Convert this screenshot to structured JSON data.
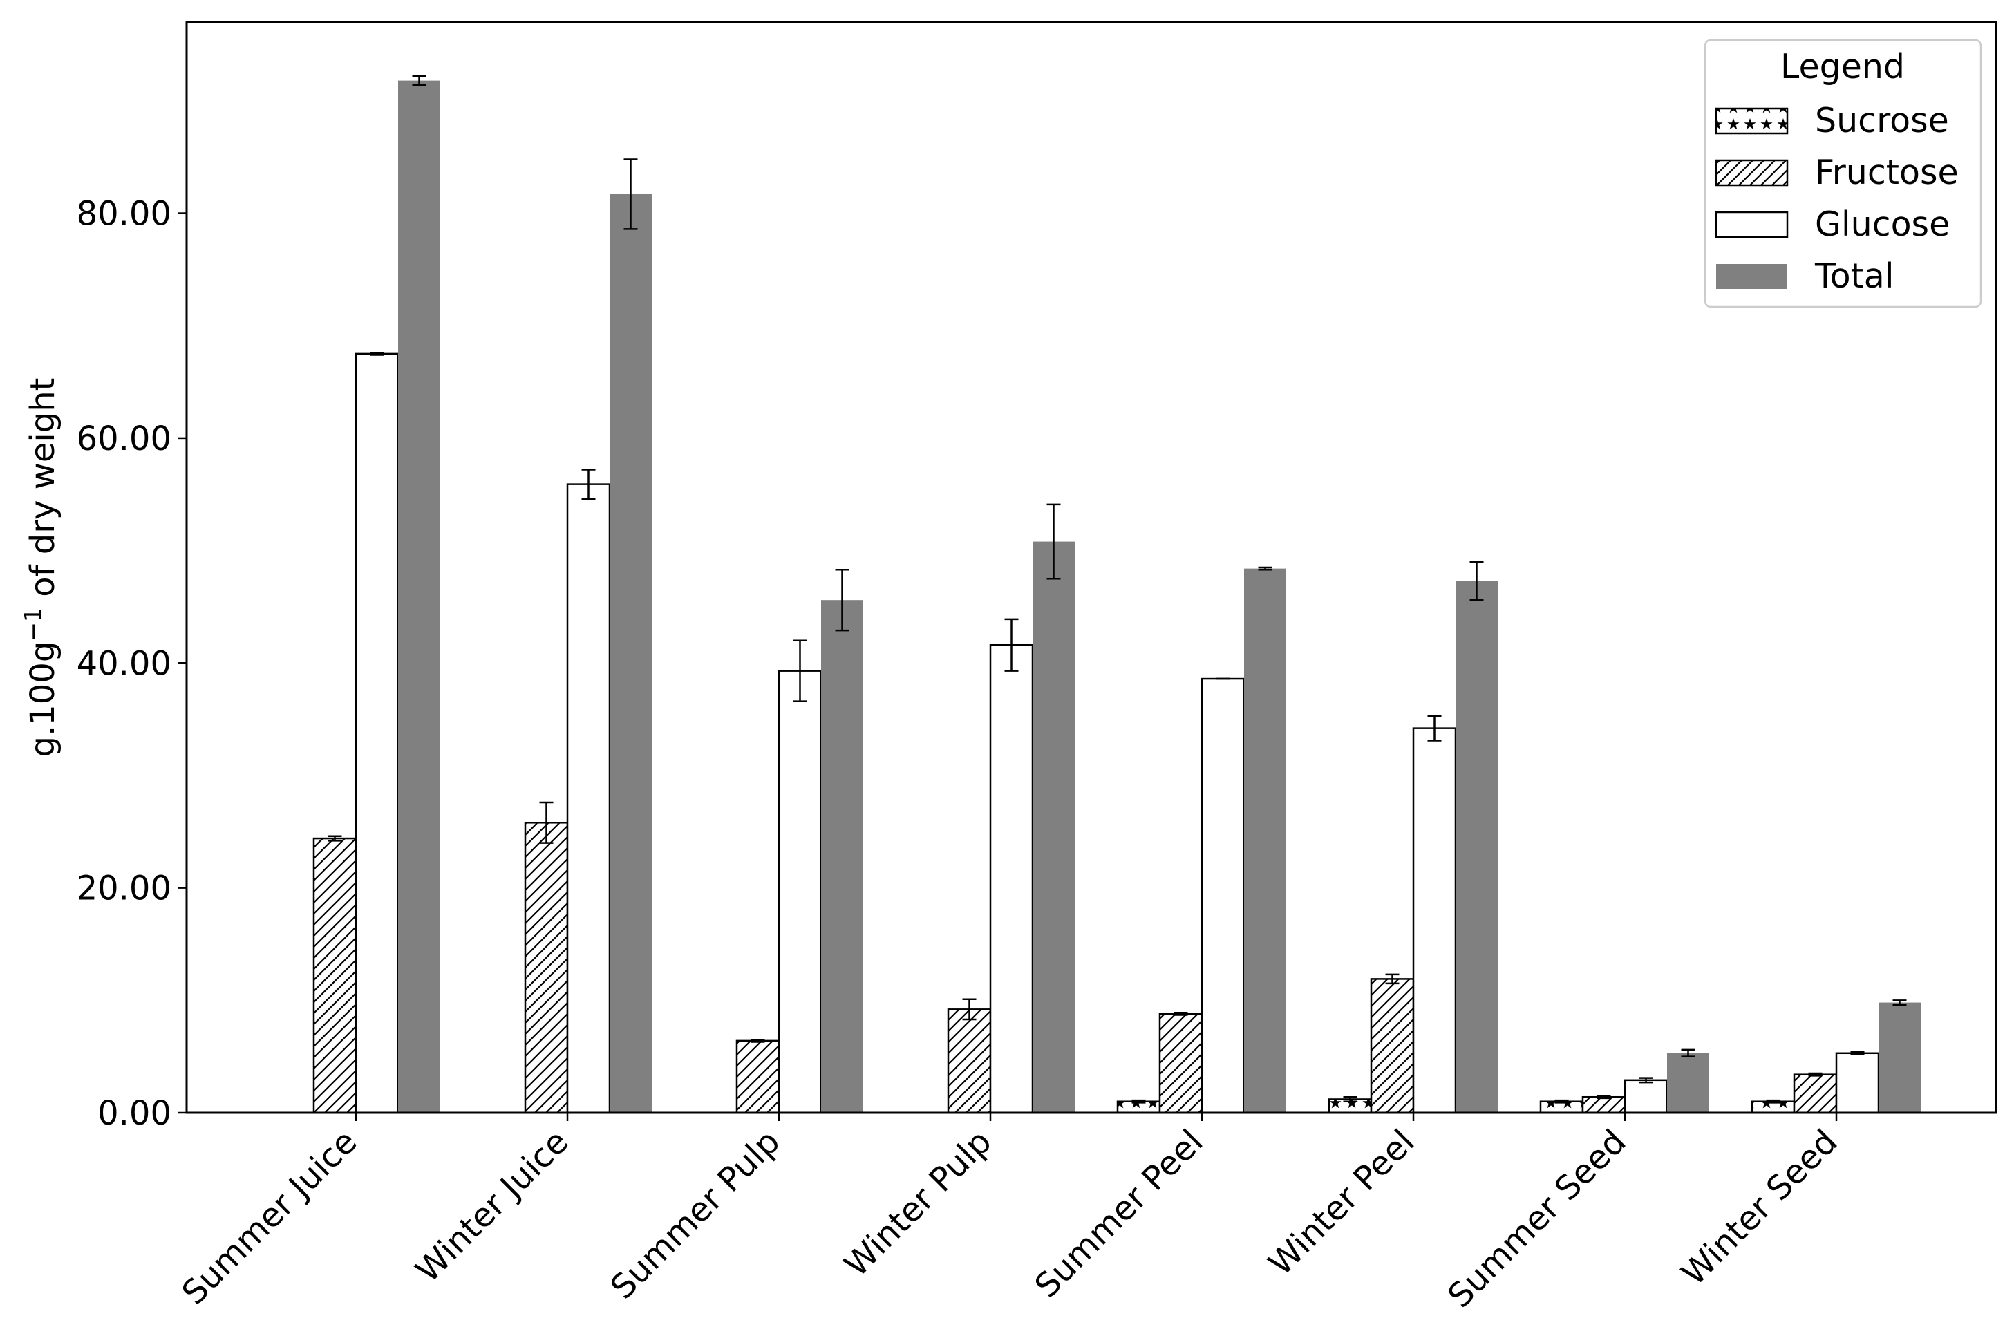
{
  "chart_data": {
    "type": "bar",
    "categories": [
      "Summer Juice",
      "Winter Juice",
      "Summer Pulp",
      "Winter Pulp",
      "Summer Peel",
      "Winter Peel",
      "Summer Seed",
      "Winter Seed"
    ],
    "series": [
      {
        "name": "Sucrose",
        "pattern": "stars",
        "values": [
          0,
          0,
          0,
          0,
          1.0,
          1.2,
          1.0,
          1.0
        ],
        "errors": [
          0,
          0,
          0,
          0,
          0.1,
          0.2,
          0.1,
          0.1
        ]
      },
      {
        "name": "Fructose",
        "pattern": "hatch",
        "values": [
          24.4,
          25.8,
          6.4,
          9.2,
          8.8,
          11.9,
          1.4,
          3.4
        ],
        "errors": [
          0.2,
          1.8,
          0.1,
          0.9,
          0.1,
          0.4,
          0.1,
          0.1
        ]
      },
      {
        "name": "Glucose",
        "pattern": "none",
        "values": [
          67.5,
          55.9,
          39.3,
          41.6,
          38.6,
          34.2,
          2.9,
          5.3
        ],
        "errors": [
          0.1,
          1.3,
          2.7,
          2.3,
          0.0,
          1.1,
          0.2,
          0.1
        ]
      },
      {
        "name": "Total",
        "pattern": "solid",
        "values": [
          91.8,
          81.7,
          45.6,
          50.8,
          48.4,
          47.3,
          5.3,
          9.8
        ],
        "errors": [
          0.4,
          3.1,
          2.7,
          3.3,
          0.1,
          1.7,
          0.3,
          0.2
        ]
      }
    ],
    "ylabel": "g.100g⁻¹ of dry weight",
    "ylabel_main": "g.100g",
    "ylabel_sup": "−1",
    "ylabel_rest": " of dry weight",
    "xlabel": "",
    "ylim": [
      0,
      97
    ],
    "yticks": [
      "0.00",
      "20.00",
      "40.00",
      "60.00",
      "80.00"
    ],
    "legend": {
      "title": "Legend",
      "placement": "top-right"
    },
    "grid": false,
    "colors": {
      "total": "#808080",
      "edge": "#000000",
      "fill": "#ffffff"
    }
  }
}
